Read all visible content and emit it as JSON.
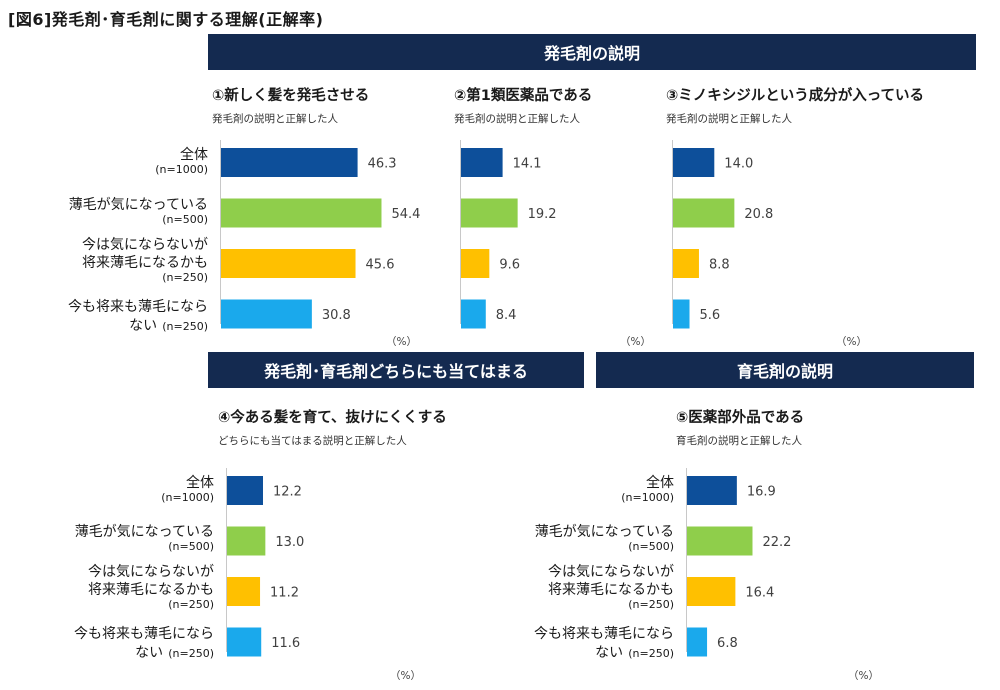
{
  "figure_title": "[図6]発毛剤･育毛剤に関する理解(正解率)",
  "banners": {
    "hatsumo": "発毛剤の説明",
    "both": "発毛剤･育毛剤どちらにも当てはまる",
    "ikumo": "育毛剤の説明"
  },
  "unit_label": "（%）",
  "categories": [
    {
      "label": "全体",
      "label2": "",
      "n": "(n=1000)"
    },
    {
      "label": "薄毛が気になっている",
      "label2": "",
      "n": "(n=500)"
    },
    {
      "label": "今は気にならないが",
      "label2": "将来薄毛になるかも",
      "n": "(n=250)"
    },
    {
      "label": "今も将来も薄毛になら",
      "label2": "ない",
      "n": "(n=250)"
    }
  ],
  "colors": [
    "#0d4f9a",
    "#8fce4b",
    "#ffc000",
    "#1aa9ec"
  ],
  "chart_data": [
    {
      "type": "bar",
      "orientation": "horizontal",
      "title": "①新しく髪を発毛させる",
      "subtitle": "発毛剤の説明と正解した人",
      "categories": [
        "全体",
        "薄毛が気になっている",
        "今は気にならないが将来薄毛になるかも",
        "今も将来も薄毛にならない"
      ],
      "values": [
        46.3,
        54.4,
        45.6,
        30.8
      ],
      "value_labels": [
        "46.3",
        "54.4",
        "45.6",
        "30.8"
      ],
      "xlim": [
        0,
        100
      ],
      "unit": "%"
    },
    {
      "type": "bar",
      "orientation": "horizontal",
      "title": "②第1類医薬品である",
      "subtitle": "発毛剤の説明と正解した人",
      "categories": [
        "全体",
        "薄毛が気になっている",
        "今は気にならないが将来薄毛になるかも",
        "今も将来も薄毛にならない"
      ],
      "values": [
        14.1,
        19.2,
        9.6,
        8.4
      ],
      "value_labels": [
        "14.1",
        "19.2",
        "9.6",
        "8.4"
      ],
      "xlim": [
        0,
        100
      ],
      "unit": "%"
    },
    {
      "type": "bar",
      "orientation": "horizontal",
      "title": "③ミノキシジルという成分が入っている",
      "subtitle": "発毛剤の説明と正解した人",
      "categories": [
        "全体",
        "薄毛が気になっている",
        "今は気にならないが将来薄毛になるかも",
        "今も将来も薄毛にならない"
      ],
      "values": [
        14.0,
        20.8,
        8.8,
        5.6
      ],
      "value_labels": [
        "14.0",
        "20.8",
        "8.8",
        "5.6"
      ],
      "xlim": [
        0,
        100
      ],
      "unit": "%"
    },
    {
      "type": "bar",
      "orientation": "horizontal",
      "title": "④今ある髪を育て、抜けにくくする",
      "subtitle": "どちらにも当てはまる説明と正解した人",
      "categories": [
        "全体",
        "薄毛が気になっている",
        "今は気にならないが将来薄毛になるかも",
        "今も将来も薄毛にならない"
      ],
      "values": [
        12.2,
        13.0,
        11.2,
        11.6
      ],
      "value_labels": [
        "12.2",
        "13.0",
        "11.2",
        "11.6"
      ],
      "xlim": [
        0,
        100
      ],
      "unit": "%"
    },
    {
      "type": "bar",
      "orientation": "horizontal",
      "title": "⑤医薬部外品である",
      "subtitle": "育毛剤の説明と正解した人",
      "categories": [
        "全体",
        "薄毛が気になっている",
        "今は気にならないが将来薄毛になるかも",
        "今も将来も薄毛にならない"
      ],
      "values": [
        16.9,
        22.2,
        16.4,
        6.8
      ],
      "value_labels": [
        "16.9",
        "22.2",
        "16.4",
        "6.8"
      ],
      "xlim": [
        0,
        100
      ],
      "unit": "%"
    }
  ]
}
